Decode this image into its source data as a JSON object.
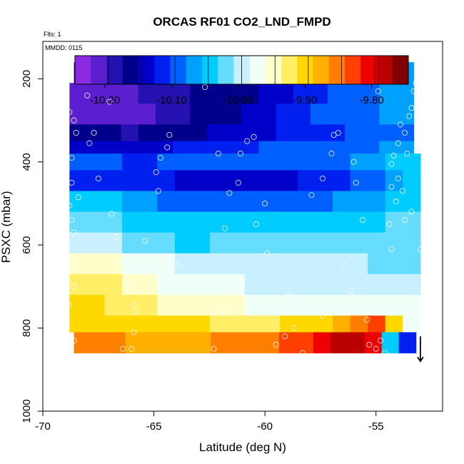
{
  "chart_data": {
    "type": "heatmap",
    "title": "ORCAS RF01 CO2_LND_FMPD",
    "flights_note": "Flts: 1",
    "date_note": "MMDD: 0115",
    "xlabel": "Latitude (deg N)",
    "ylabel": "PSXC (mbar)",
    "xlim": [
      -70,
      -52
    ],
    "ylim": [
      1000,
      110
    ],
    "x_ticks": [
      -70,
      -65,
      -60,
      -55
    ],
    "x_tick_labels": [
      "-70",
      "-65",
      "-60",
      "-55"
    ],
    "y_ticks": [
      200,
      400,
      600,
      800,
      1000
    ],
    "y_tick_labels": [
      "200",
      "400",
      "600",
      "800",
      "1000"
    ],
    "colorbar": {
      "min": -10.245,
      "max": -9.745,
      "ticks": [
        -10.2,
        -10.1,
        -10.0,
        -9.9,
        -9.8
      ],
      "tick_labels": [
        "-10.20",
        "-10.10",
        "-10.00",
        "-9.90",
        "-9.80"
      ],
      "colors": [
        "#8a2be2",
        "#5b1fd0",
        "#2510b0",
        "#00008b",
        "#0000c8",
        "#0020f0",
        "#0060ff",
        "#00a0ff",
        "#00ccff",
        "#66ddff",
        "#c8f0ff",
        "#f0fff8",
        "#ffffcc",
        "#ffee66",
        "#ffd800",
        "#ffb000",
        "#ff8000",
        "#ff4000",
        "#ee0000",
        "#bb0000",
        "#800000"
      ]
    },
    "pressure_bands": [
      {
        "p_top": 160,
        "p_bottom": 210,
        "lat_min": -68.6,
        "lat_max": -53.3,
        "values": [
          -10.18,
          -10.17,
          -10.15,
          -10.13,
          -10.12,
          -10.13,
          -10.15,
          -10.14,
          -10.12,
          -10.11,
          -10.1,
          -10.11,
          -10.12,
          -10.11,
          -10.09,
          -10.08,
          -10.07,
          -10.06,
          -10.06,
          -10.06
        ]
      },
      {
        "p_top": 210,
        "p_bottom": 260,
        "lat_min": -68.8,
        "lat_max": -53.3,
        "values": [
          -10.22,
          -10.21,
          -10.2,
          -10.2,
          -10.19,
          -10.19,
          -10.18,
          -10.17,
          -10.17,
          -10.16,
          -10.15,
          -10.14,
          -10.13,
          -10.12,
          -10.11,
          -10.1,
          -10.09,
          -10.08,
          -10.07,
          -10.06
        ]
      },
      {
        "p_top": 260,
        "p_bottom": 310,
        "lat_min": -68.8,
        "lat_max": -53.3,
        "values": [
          -10.21,
          -10.21,
          -10.21,
          -10.21,
          -10.2,
          -10.19,
          -10.18,
          -10.17,
          -10.16,
          -10.15,
          -10.14,
          -10.13,
          -10.12,
          -10.11,
          -10.1,
          -10.09,
          -10.08,
          -10.08,
          -10.07,
          -10.07
        ]
      },
      {
        "p_top": 310,
        "p_bottom": 350,
        "lat_min": -68.8,
        "lat_max": -53.3,
        "values": [
          -10.15,
          -10.16,
          -10.17,
          -10.18,
          -10.17,
          -10.16,
          -10.16,
          -10.15,
          -10.14,
          -10.14,
          -10.13,
          -10.13,
          -10.12,
          -10.12,
          -10.11,
          -10.11,
          -10.1,
          -10.09,
          -10.08,
          -10.08
        ]
      },
      {
        "p_top": 350,
        "p_bottom": 380,
        "lat_min": -68.8,
        "lat_max": -53.3,
        "values": [
          -10.14,
          -10.14,
          -10.14,
          -10.13,
          -10.13,
          -10.13,
          -10.12,
          -10.12,
          -10.12,
          -10.11,
          -10.11,
          -10.1,
          -10.1,
          -10.1,
          -10.09,
          -10.09,
          -10.08,
          -10.08,
          -10.07,
          -10.07
        ]
      },
      {
        "p_top": 380,
        "p_bottom": 420,
        "lat_min": -68.8,
        "lat_max": -53.0,
        "values": [
          -10.1,
          -10.1,
          -10.1,
          -10.11,
          -10.11,
          -10.1,
          -10.1,
          -10.09,
          -10.09,
          -10.09,
          -10.09,
          -10.09,
          -10.08,
          -10.08,
          -10.08,
          -10.08,
          -10.07,
          -10.06,
          -10.05,
          -10.05
        ]
      },
      {
        "p_top": 420,
        "p_bottom": 470,
        "lat_min": -68.8,
        "lat_max": -53.0,
        "values": [
          -10.12,
          -10.12,
          -10.12,
          -10.12,
          -10.12,
          -10.12,
          -10.13,
          -10.13,
          -10.13,
          -10.13,
          -10.13,
          -10.13,
          -10.13,
          -10.12,
          -10.12,
          -10.11,
          -10.1,
          -10.08,
          -10.06,
          -10.05
        ]
      },
      {
        "p_top": 470,
        "p_bottom": 520,
        "lat_min": -68.8,
        "lat_max": -53.0,
        "values": [
          -10.04,
          -10.04,
          -10.05,
          -10.06,
          -10.07,
          -10.08,
          -10.08,
          -10.08,
          -10.08,
          -10.08,
          -10.08,
          -10.08,
          -10.08,
          -10.08,
          -10.08,
          -10.07,
          -10.07,
          -10.06,
          -10.05,
          -10.05
        ]
      },
      {
        "p_top": 520,
        "p_bottom": 570,
        "lat_min": -68.8,
        "lat_max": -53.0,
        "values": [
          -10.03,
          -10.03,
          -10.03,
          -10.04,
          -10.04,
          -10.05,
          -10.05,
          -10.05,
          -10.05,
          -10.05,
          -10.05,
          -10.05,
          -10.05,
          -10.05,
          -10.05,
          -10.04,
          -10.04,
          -10.04,
          -10.03,
          -10.03
        ]
      },
      {
        "p_top": 570,
        "p_bottom": 620,
        "lat_min": -68.8,
        "lat_max": -53.0,
        "values": [
          -10.0,
          -10.0,
          -10.0,
          -10.01,
          -10.02,
          -10.03,
          -10.04,
          -10.04,
          -10.03,
          -10.02,
          -10.02,
          -10.02,
          -10.02,
          -10.02,
          -10.03,
          -10.03,
          -10.03,
          -10.03,
          -10.03,
          -10.03
        ]
      },
      {
        "p_top": 620,
        "p_bottom": 670,
        "lat_min": -68.8,
        "lat_max": -53.0,
        "values": [
          -9.94,
          -9.94,
          -9.95,
          -9.96,
          -9.97,
          -9.98,
          -9.99,
          -10.0,
          -10.0,
          -10.0,
          -10.0,
          -10.0,
          -10.0,
          -10.0,
          -10.0,
          -10.0,
          -10.0,
          -10.01,
          -10.01,
          -10.01
        ]
      },
      {
        "p_top": 670,
        "p_bottom": 720,
        "lat_min": -68.8,
        "lat_max": -53.0,
        "values": [
          -9.92,
          -9.92,
          -9.93,
          -9.94,
          -9.95,
          -9.96,
          -9.97,
          -9.97,
          -9.98,
          -9.98,
          -9.99,
          -9.99,
          -9.99,
          -9.99,
          -9.99,
          -10.0,
          -10.0,
          -10.0,
          -10.0,
          -10.0
        ]
      },
      {
        "p_top": 720,
        "p_bottom": 770,
        "lat_min": -68.8,
        "lat_max": -53.0,
        "values": [
          -9.91,
          -9.91,
          -9.92,
          -9.93,
          -9.93,
          -9.94,
          -9.94,
          -9.95,
          -9.95,
          -9.95,
          -9.96,
          -9.96,
          -9.96,
          -9.96,
          -9.97,
          -9.97,
          -9.97,
          -9.98,
          -9.98,
          -9.98
        ]
      },
      {
        "p_top": 770,
        "p_bottom": 810,
        "lat_min": -68.8,
        "lat_max": -53.0,
        "values": [
          -9.9,
          -9.9,
          -9.9,
          -9.9,
          -9.9,
          -9.91,
          -9.91,
          -9.91,
          -9.92,
          -9.92,
          -9.92,
          -9.92,
          -9.91,
          -9.9,
          -9.89,
          -9.88,
          -9.86,
          -9.84,
          -9.9,
          -9.96
        ]
      },
      {
        "p_top": 810,
        "p_bottom": 860,
        "lat_min": -68.6,
        "lat_max": -53.2,
        "values": [
          -9.86,
          -9.86,
          -9.86,
          -9.87,
          -9.87,
          -9.87,
          -9.87,
          -9.87,
          -9.86,
          -9.86,
          -9.86,
          -9.85,
          -9.84,
          -9.82,
          -9.8,
          -9.78,
          -9.78,
          -9.8,
          -10.05,
          -10.12
        ]
      }
    ],
    "flight_samples": [
      {
        "lat": -68.3,
        "p": 180
      },
      {
        "lat": -67.8,
        "p": 180
      },
      {
        "lat": -67.3,
        "p": 180
      },
      {
        "lat": -66.8,
        "p": 180
      },
      {
        "lat": -66.3,
        "p": 180
      },
      {
        "lat": -65.8,
        "p": 180
      },
      {
        "lat": -65.3,
        "p": 180
      },
      {
        "lat": -64.8,
        "p": 180
      },
      {
        "lat": -64.3,
        "p": 180
      },
      {
        "lat": -63.8,
        "p": 180
      },
      {
        "lat": -63.3,
        "p": 183
      },
      {
        "lat": -62.8,
        "p": 180
      },
      {
        "lat": -62.3,
        "p": 180
      },
      {
        "lat": -61.8,
        "p": 180
      },
      {
        "lat": -61.3,
        "p": 180
      },
      {
        "lat": -60.8,
        "p": 180
      },
      {
        "lat": -60.3,
        "p": 180
      },
      {
        "lat": -59.8,
        "p": 180
      },
      {
        "lat": -59.3,
        "p": 180
      },
      {
        "lat": -58.8,
        "p": 180
      },
      {
        "lat": -58.3,
        "p": 180
      },
      {
        "lat": -57.8,
        "p": 180
      },
      {
        "lat": -57.3,
        "p": 180
      },
      {
        "lat": -56.8,
        "p": 180
      },
      {
        "lat": -56.3,
        "p": 180
      },
      {
        "lat": -55.8,
        "p": 180
      },
      {
        "lat": -55.3,
        "p": 180
      },
      {
        "lat": -53.1,
        "p": 180
      },
      {
        "lat": -53.2,
        "p": 210
      },
      {
        "lat": -53.3,
        "p": 230
      },
      {
        "lat": -53.1,
        "p": 255
      },
      {
        "lat": -53.4,
        "p": 270
      },
      {
        "lat": -53.5,
        "p": 290
      },
      {
        "lat": -53.9,
        "p": 310
      },
      {
        "lat": -53.7,
        "p": 330
      },
      {
        "lat": -54.0,
        "p": 355
      },
      {
        "lat": -53.6,
        "p": 380
      },
      {
        "lat": -54.2,
        "p": 385
      },
      {
        "lat": -54.3,
        "p": 405
      },
      {
        "lat": -54.0,
        "p": 440
      },
      {
        "lat": -54.3,
        "p": 460
      },
      {
        "lat": -53.8,
        "p": 470
      },
      {
        "lat": -54.1,
        "p": 495
      },
      {
        "lat": -53.4,
        "p": 520
      },
      {
        "lat": -53.7,
        "p": 540
      },
      {
        "lat": -54.4,
        "p": 550
      },
      {
        "lat": -53.0,
        "p": 610
      },
      {
        "lat": -68.4,
        "p": 200
      },
      {
        "lat": -68.8,
        "p": 280
      },
      {
        "lat": -68.6,
        "p": 300
      },
      {
        "lat": -68.5,
        "p": 330
      },
      {
        "lat": -68.7,
        "p": 390
      },
      {
        "lat": -68.7,
        "p": 450
      },
      {
        "lat": -68.8,
        "p": 505
      },
      {
        "lat": -68.7,
        "p": 540
      },
      {
        "lat": -68.6,
        "p": 570
      },
      {
        "lat": -68.7,
        "p": 650
      },
      {
        "lat": -68.6,
        "p": 700
      },
      {
        "lat": -68.8,
        "p": 745
      },
      {
        "lat": -68.6,
        "p": 830
      },
      {
        "lat": -68.4,
        "p": 485
      },
      {
        "lat": -67.9,
        "p": 355
      },
      {
        "lat": -67.7,
        "p": 330
      },
      {
        "lat": -67.0,
        "p": 255
      },
      {
        "lat": -68.0,
        "p": 240
      },
      {
        "lat": -67.5,
        "p": 440
      },
      {
        "lat": -66.9,
        "p": 525
      },
      {
        "lat": -66.7,
        "p": 580
      },
      {
        "lat": -66.6,
        "p": 640
      },
      {
        "lat": -66.0,
        "p": 700
      },
      {
        "lat": -65.9,
        "p": 745
      },
      {
        "lat": -65.8,
        "p": 760
      },
      {
        "lat": -65.9,
        "p": 810
      },
      {
        "lat": -66.4,
        "p": 850
      },
      {
        "lat": -66.0,
        "p": 850
      },
      {
        "lat": -65.4,
        "p": 590
      },
      {
        "lat": -64.8,
        "p": 470
      },
      {
        "lat": -64.9,
        "p": 425
      },
      {
        "lat": -64.7,
        "p": 390
      },
      {
        "lat": -64.4,
        "p": 365
      },
      {
        "lat": -64.3,
        "p": 335
      },
      {
        "lat": -63.9,
        "p": 650
      },
      {
        "lat": -63.1,
        "p": 195
      },
      {
        "lat": -62.7,
        "p": 220
      },
      {
        "lat": -62.1,
        "p": 380
      },
      {
        "lat": -62.3,
        "p": 850
      },
      {
        "lat": -61.9,
        "p": 760
      },
      {
        "lat": -61.8,
        "p": 560
      },
      {
        "lat": -61.6,
        "p": 475
      },
      {
        "lat": -61.2,
        "p": 450
      },
      {
        "lat": -61.1,
        "p": 380
      },
      {
        "lat": -60.8,
        "p": 350
      },
      {
        "lat": -60.5,
        "p": 340
      },
      {
        "lat": -60.4,
        "p": 550
      },
      {
        "lat": -60.0,
        "p": 500
      },
      {
        "lat": -59.9,
        "p": 620
      },
      {
        "lat": -59.5,
        "p": 840
      },
      {
        "lat": -59.1,
        "p": 820
      },
      {
        "lat": -58.7,
        "p": 800
      },
      {
        "lat": -57.9,
        "p": 480
      },
      {
        "lat": -57.4,
        "p": 440
      },
      {
        "lat": -57.0,
        "p": 380
      },
      {
        "lat": -56.9,
        "p": 335
      },
      {
        "lat": -56.7,
        "p": 330
      },
      {
        "lat": -56.4,
        "p": 650
      },
      {
        "lat": -56.1,
        "p": 710
      },
      {
        "lat": -55.8,
        "p": 750
      },
      {
        "lat": -55.4,
        "p": 780
      },
      {
        "lat": -55.3,
        "p": 840
      },
      {
        "lat": -55.0,
        "p": 850
      },
      {
        "lat": -54.8,
        "p": 830
      },
      {
        "lat": -54.6,
        "p": 860
      },
      {
        "lat": -54.3,
        "p": 610
      },
      {
        "lat": -55.6,
        "p": 540
      },
      {
        "lat": -55.9,
        "p": 450
      },
      {
        "lat": -56.0,
        "p": 400
      },
      {
        "lat": -58.3,
        "p": 860
      },
      {
        "lat": -57.4,
        "p": 770
      },
      {
        "lat": -54.9,
        "p": 230
      },
      {
        "lat": -58.9,
        "p": 720
      }
    ],
    "end_marker": {
      "lat": -53.0,
      "p_start": 820,
      "p_end": 880
    }
  }
}
